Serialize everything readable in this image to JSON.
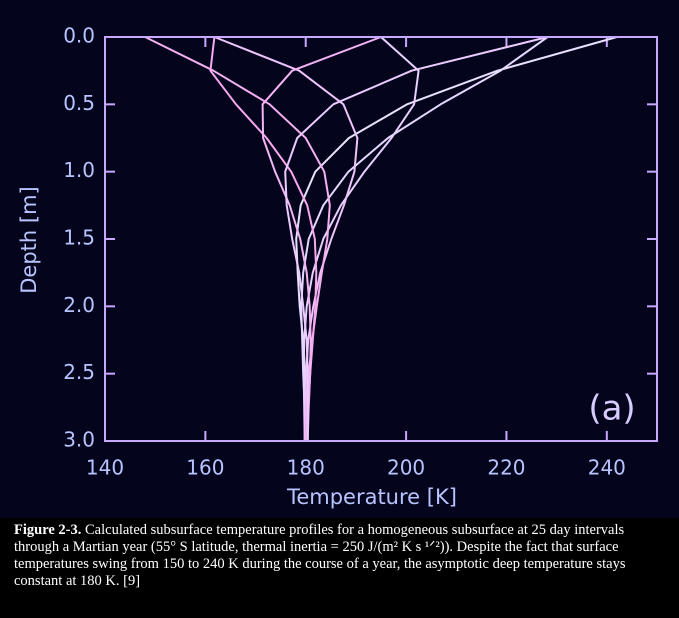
{
  "chart_data": {
    "type": "line",
    "x_label": "Temperature [K]",
    "y_label": "Depth [m]",
    "annotation": "(a)",
    "depth": [
      0,
      0.25,
      0.5,
      0.75,
      1.0,
      1.25,
      1.5,
      1.75,
      2.0,
      2.25,
      2.5,
      2.75,
      3.0
    ],
    "xlim": [
      140,
      250
    ],
    "xticks": [
      140,
      160,
      180,
      200,
      220,
      240
    ],
    "ylim": [
      0,
      3
    ],
    "y_inverted": true,
    "yticks": [
      {
        "value": 0,
        "label": "0.0"
      },
      {
        "value": 0.5,
        "label": "0.5"
      },
      {
        "value": 1,
        "label": "1.0"
      },
      {
        "value": 1.5,
        "label": "1.5"
      },
      {
        "value": 2,
        "label": "2.0"
      },
      {
        "value": 2.5,
        "label": "2.5"
      },
      {
        "value": 3,
        "label": "3.0"
      }
    ],
    "series": [
      {
        "color": "#e8e0ff",
        "values": [
          242,
          218.2,
          200.2,
          188.6,
          181.9,
          179.0,
          178.1,
          178.4,
          178.8,
          179.5,
          179.9,
          180.1,
          180.2
        ]
      },
      {
        "color": "#e4d8ff",
        "values": [
          228.2,
          218.8,
          206.9,
          196.4,
          188.5,
          183.5,
          180.6,
          179.5,
          179.1,
          179.3,
          179.5,
          179.8,
          180.0
        ]
      },
      {
        "color": "#e8d0ff",
        "values": [
          195,
          202.5,
          201.6,
          197.1,
          191.7,
          187.0,
          183.5,
          181.4,
          180.2,
          179.7,
          179.6,
          179.7,
          179.8
        ]
      },
      {
        "color": "#eec4fa",
        "values": [
          161.8,
          178.7,
          187.5,
          190.3,
          189.7,
          187.6,
          185.1,
          182.9,
          181.5,
          180.5,
          180.1,
          179.9,
          179.8
        ]
      },
      {
        "color": "#f4b0f0",
        "values": [
          148,
          161.6,
          172.8,
          180.0,
          183.7,
          184.8,
          184.3,
          183.2,
          182.2,
          181.3,
          180.6,
          180.2,
          180.0
        ]
      },
      {
        "color": "#f8a8ee",
        "values": [
          161.8,
          161.0,
          166.1,
          172.2,
          177.1,
          180.3,
          181.8,
          182.1,
          181.9,
          181.4,
          180.9,
          180.5,
          180.3
        ]
      },
      {
        "color": "#f4b4f4",
        "values": [
          195,
          177.3,
          171.4,
          171.5,
          173.9,
          176.8,
          178.9,
          180.2,
          180.8,
          181.0,
          180.9,
          180.6,
          180.4
        ]
      },
      {
        "color": "#ecccff",
        "values": [
          228.2,
          201.1,
          185.5,
          178.3,
          175.9,
          176.2,
          177.3,
          178.7,
          179.5,
          180.2,
          180.4,
          180.4,
          180.4
        ]
      }
    ],
    "caption": {
      "label": "Figure 2-3.",
      "text": "Calculated subsurface temperature profiles for a homogeneous subsurface at 25 day intervals through a Martian year (55° S latitude, thermal inertia = 250 J/(m² K s ¹ᐟ²)). Despite the fact that surface temperatures swing from 150 to 240 K during the course of a year, the asymptotic deep temperature stays constant at 180 K. [9]"
    }
  }
}
